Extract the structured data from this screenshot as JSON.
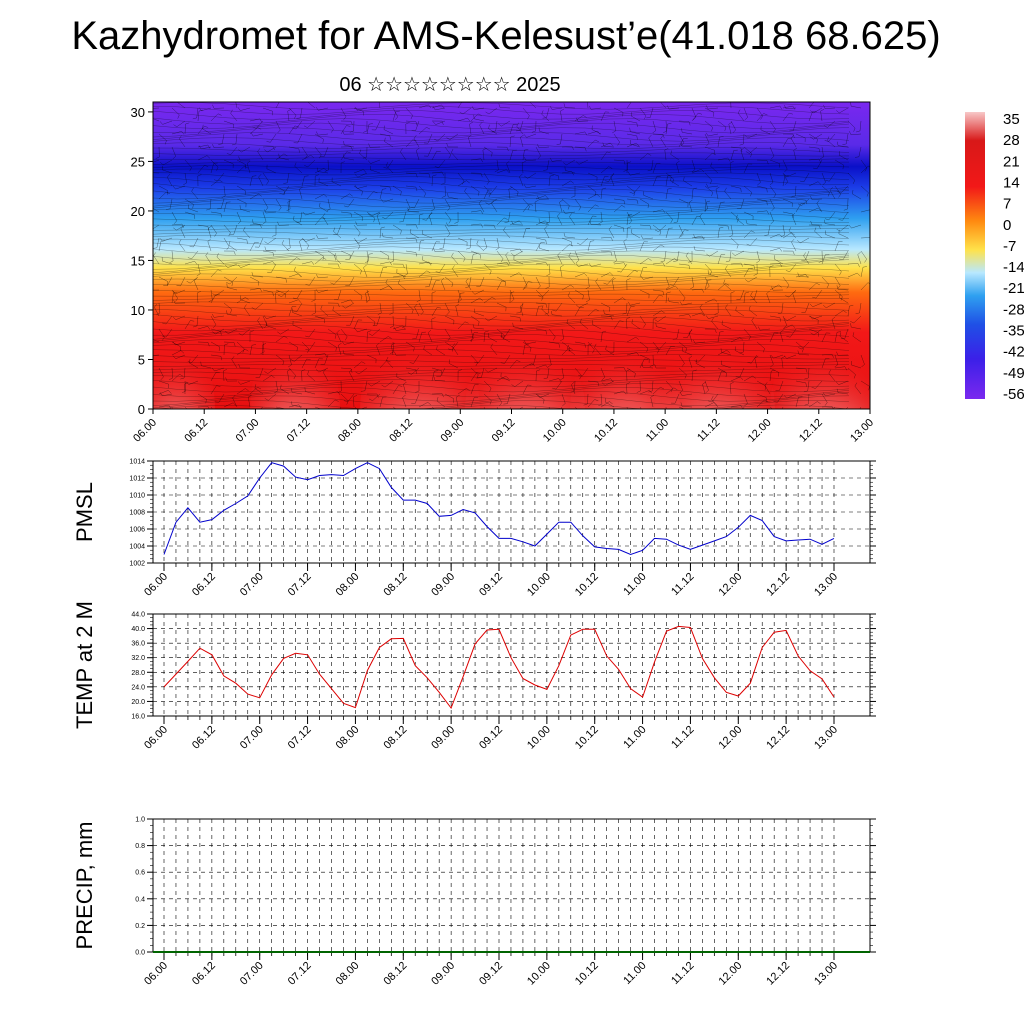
{
  "header": {
    "title": "Kazhydromet for AMS-Kelesust’e(41.018 68.625)",
    "subtitle": "06 ☆☆☆☆☆☆☆☆ 2025"
  },
  "chart_data": [
    {
      "type": "heatmap",
      "x_ticks": [
        "06.00",
        "06.12",
        "07.00",
        "07.12",
        "08.00",
        "08.12",
        "09.00",
        "09.12",
        "10.00",
        "10.12",
        "11.00",
        "11.12",
        "12.00",
        "12.12",
        "13.00"
      ],
      "y_ticks": [
        "0",
        "5",
        "10",
        "15",
        "20",
        "25",
        "30"
      ],
      "ylim": [
        0,
        31
      ],
      "colorbar_labels": [
        "35",
        "28",
        "21",
        "14",
        "7",
        "0",
        "-7",
        "-14",
        "-21",
        "-28",
        "-35",
        "-42",
        "-49",
        "-56"
      ],
      "colors": {
        "low": "#6a1fe8",
        "mid": "#ffe24a",
        "high": "#e01010"
      }
    },
    {
      "type": "line",
      "ylabel": "PMSL",
      "ylim": [
        1002,
        1014
      ],
      "y_ticks": [
        "1002",
        "1004",
        "1006",
        "1008",
        "1010",
        "1012",
        "1014"
      ],
      "x_ticks": [
        "06.00",
        "06.12",
        "07.00",
        "07.12",
        "08.00",
        "08.12",
        "09.00",
        "09.12",
        "10.00",
        "10.12",
        "11.00",
        "11.12",
        "12.00",
        "12.12",
        "13.00"
      ],
      "color": "#0000cc",
      "values": [
        1003.0,
        1006.8,
        1008.5,
        1006.8,
        1007.1,
        1008.2,
        1009.0,
        1009.9,
        1012.0,
        1013.8,
        1013.4,
        1012.1,
        1011.8,
        1012.3,
        1012.4,
        1012.3,
        1013.1,
        1013.8,
        1013.1,
        1010.9,
        1009.4,
        1009.4,
        1009.0,
        1007.5,
        1007.6,
        1008.3,
        1007.9,
        1006.3,
        1004.9,
        1004.9,
        1004.5,
        1004.0,
        1005.4,
        1006.8,
        1006.8,
        1005.2,
        1003.9,
        1003.7,
        1003.6,
        1003.0,
        1003.5,
        1004.9,
        1004.8,
        1004.1,
        1003.6,
        1004.1,
        1004.6,
        1005.1,
        1006.2,
        1007.6,
        1007.0,
        1005.1,
        1004.6,
        1004.7,
        1004.8,
        1004.2,
        1004.9
      ]
    },
    {
      "type": "line",
      "ylabel": "TEMP at 2 M",
      "ylim": [
        16,
        44
      ],
      "y_ticks": [
        "16.0",
        "20.0",
        "24.0",
        "28.0",
        "32.0",
        "36.0",
        "40.0",
        "44.0"
      ],
      "x_ticks": [
        "06.00",
        "06.12",
        "07.00",
        "07.12",
        "08.00",
        "08.12",
        "09.00",
        "09.12",
        "10.00",
        "10.12",
        "11.00",
        "11.12",
        "12.00",
        "12.12",
        "13.00"
      ],
      "color": "#dd0000",
      "values": [
        24.0,
        27.5,
        31.0,
        34.6,
        32.8,
        27.0,
        25.0,
        22.0,
        21.0,
        27.3,
        31.8,
        33.2,
        32.8,
        27.5,
        23.5,
        19.5,
        18.3,
        28.5,
        34.8,
        37.2,
        37.3,
        29.8,
        26.5,
        22.5,
        18.2,
        26.8,
        35.8,
        39.6,
        39.8,
        32.0,
        26.3,
        24.5,
        23.3,
        29.8,
        38.2,
        39.8,
        39.8,
        32.5,
        28.8,
        23.5,
        21.2,
        30.8,
        39.3,
        40.6,
        40.3,
        31.8,
        26.5,
        22.5,
        21.5,
        25.0,
        34.8,
        39.0,
        39.5,
        32.5,
        28.4,
        26.2,
        21.2
      ]
    },
    {
      "type": "bar",
      "ylabel": "PRECIP, mm",
      "ylim": [
        0,
        1
      ],
      "y_ticks": [
        "0.0",
        "0.2",
        "0.4",
        "0.6",
        "0.8",
        "1.0"
      ],
      "x_ticks": [
        "06.00",
        "06.12",
        "07.00",
        "07.12",
        "08.00",
        "08.12",
        "09.00",
        "09.12",
        "10.00",
        "10.12",
        "11.00",
        "11.12",
        "12.00",
        "12.12",
        "13.00"
      ],
      "color": "#006400",
      "values": []
    }
  ]
}
